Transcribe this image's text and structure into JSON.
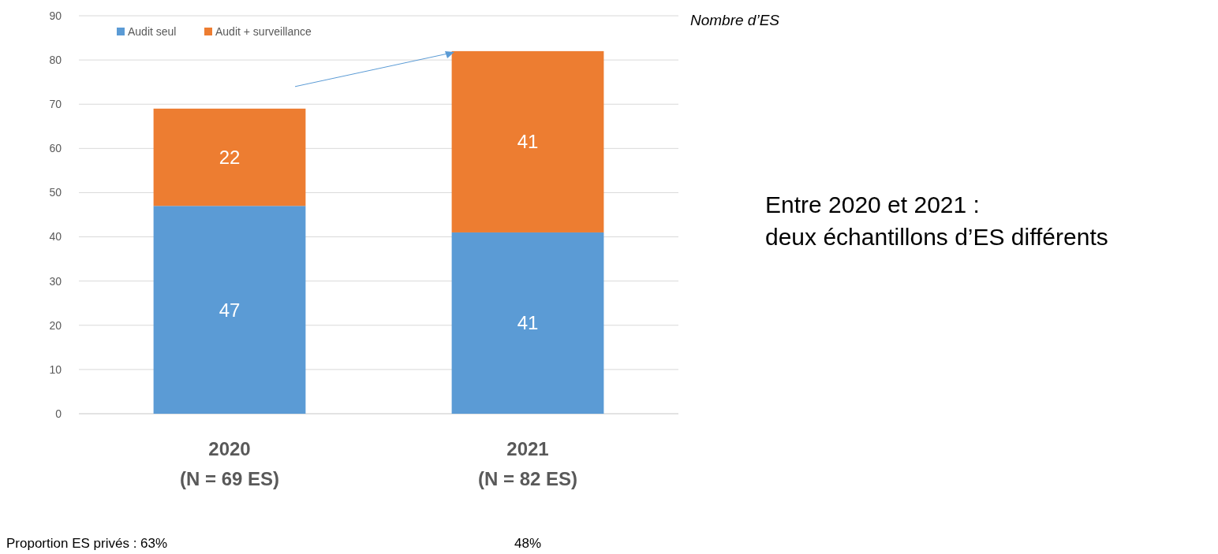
{
  "chart_data": {
    "type": "bar",
    "stacked": true,
    "categories": [
      "2020\n(N = 69 ES)",
      "2021\n(N = 82 ES)"
    ],
    "series": [
      {
        "name": "Audit seul",
        "color": "#5b9bd5",
        "values": [
          47,
          41
        ]
      },
      {
        "name": "Audit + surveillance",
        "color": "#ed7d31",
        "values": [
          22,
          41
        ]
      }
    ],
    "ylabel": "Nombre d’ES",
    "ylim": [
      0,
      90
    ],
    "yticks": [
      0,
      10,
      20,
      30,
      40,
      50,
      60,
      70,
      80,
      90
    ],
    "grid": "y",
    "legend": "top left",
    "data_labels": true,
    "annotations": [
      "Entre 2020 et 2021 :\ndeux échantillons d’ES différents",
      "Proportion ES privés : 63%",
      "48%"
    ]
  }
}
